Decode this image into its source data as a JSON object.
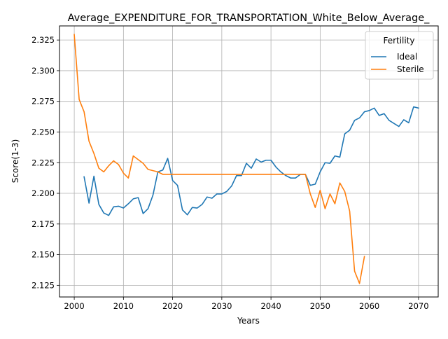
{
  "chart_data": {
    "type": "line",
    "title": "Average_EXPENDITURE_FOR_TRANSPORTATION_White_Below_Average_",
    "xlabel": "Years",
    "ylabel": "Score(1-3)",
    "xlim": [
      1997,
      2074
    ],
    "ylim": [
      2.1155,
      2.3365
    ],
    "xticks": [
      2000,
      2010,
      2020,
      2030,
      2040,
      2050,
      2060,
      2070
    ],
    "yticks": [
      2.125,
      2.15,
      2.175,
      2.2,
      2.225,
      2.25,
      2.275,
      2.3,
      2.325
    ],
    "ytick_labels": [
      "2.125",
      "2.150",
      "2.175",
      "2.200",
      "2.225",
      "2.250",
      "2.275",
      "2.300",
      "2.325"
    ],
    "grid": true,
    "legend": {
      "title": "Fertility",
      "placement": "upper right"
    },
    "series": [
      {
        "name": "Ideal",
        "color": "#1f77b4",
        "x": [
          2002,
          2003,
          2004,
          2005,
          2006,
          2007,
          2008,
          2009,
          2010,
          2011,
          2012,
          2013,
          2014,
          2015,
          2016,
          2017,
          2018,
          2019,
          2020,
          2021,
          2022,
          2023,
          2024,
          2025,
          2026,
          2027,
          2028,
          2029,
          2030,
          2031,
          2032,
          2033,
          2034,
          2035,
          2036,
          2037,
          2038,
          2039,
          2040,
          2041,
          2042,
          2043,
          2044,
          2045,
          2046,
          2047,
          2048,
          2049,
          2050,
          2051,
          2052,
          2053,
          2054,
          2055,
          2056,
          2057,
          2058,
          2059,
          2060,
          2061,
          2062,
          2063,
          2064,
          2065,
          2066,
          2067,
          2068,
          2069,
          2070
        ],
        "values": [
          2.2135,
          2.192,
          2.214,
          2.191,
          2.184,
          2.182,
          2.189,
          2.1895,
          2.188,
          2.1915,
          2.1955,
          2.1965,
          2.1835,
          2.1875,
          2.1985,
          2.2175,
          2.219,
          2.2285,
          2.2105,
          2.2065,
          2.1865,
          2.1825,
          2.1885,
          2.188,
          2.191,
          2.197,
          2.196,
          2.1995,
          2.1995,
          2.2015,
          2.206,
          2.2145,
          2.2145,
          2.2245,
          2.2205,
          2.228,
          2.2255,
          2.227,
          2.227,
          2.2215,
          2.2175,
          2.2145,
          2.2125,
          2.2125,
          2.2155,
          2.2155,
          2.2065,
          2.2075,
          2.2175,
          2.225,
          2.2245,
          2.2305,
          2.2295,
          2.2485,
          2.2515,
          2.2595,
          2.2615,
          2.2665,
          2.2675,
          2.2695,
          2.2635,
          2.265,
          2.2595,
          2.257,
          2.2545,
          2.26,
          2.2575,
          2.2705,
          2.2695
        ]
      },
      {
        "name": "Sterile",
        "color": "#ff7f0e",
        "x": [
          2000,
          2001,
          2002,
          2003,
          2004,
          2005,
          2006,
          2007,
          2008,
          2009,
          2010,
          2011,
          2012,
          2013,
          2014,
          2015,
          2016,
          2017,
          2018,
          2019,
          2020,
          2021,
          2022,
          2023,
          2024,
          2025,
          2026,
          2027,
          2028,
          2029,
          2030,
          2031,
          2032,
          2033,
          2034,
          2035,
          2036,
          2037,
          2038,
          2039,
          2040,
          2041,
          2042,
          2043,
          2044,
          2045,
          2046,
          2047,
          2048,
          2049,
          2050,
          2051,
          2052,
          2053,
          2054,
          2055,
          2056,
          2057,
          2058,
          2059
        ],
        "values": [
          2.3295,
          2.2765,
          2.2665,
          2.2425,
          2.2325,
          2.2205,
          2.2175,
          2.2225,
          2.2265,
          2.2235,
          2.2165,
          2.2125,
          2.2305,
          2.2275,
          2.2245,
          2.2195,
          2.2185,
          2.2175,
          2.2155,
          2.2155,
          2.2155,
          2.2155,
          2.2155,
          2.2155,
          2.2155,
          2.2155,
          2.2155,
          2.2155,
          2.2155,
          2.2155,
          2.2155,
          2.2155,
          2.2155,
          2.2155,
          2.2155,
          2.2155,
          2.2155,
          2.2155,
          2.2155,
          2.2155,
          2.2155,
          2.2155,
          2.2155,
          2.2155,
          2.2155,
          2.2155,
          2.2155,
          2.2155,
          2.1995,
          2.1885,
          2.2025,
          2.1875,
          2.1995,
          2.1915,
          2.2085,
          2.2015,
          2.1855,
          2.1365,
          2.1265,
          2.1485
        ]
      }
    ]
  }
}
